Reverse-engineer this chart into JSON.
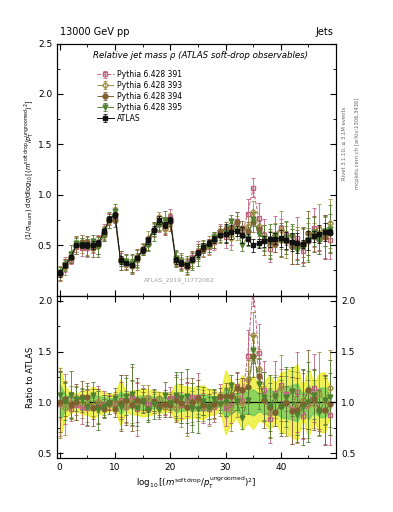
{
  "title_top": "13000 GeV pp",
  "title_right": "Jets",
  "plot_title": "Relative jet mass ρ (ATLAS soft-drop observables)",
  "watermark": "ATLAS_2019_I1772062",
  "right_label_top": "Rivet 3.1.10, ≥ 3.1M events",
  "right_label_bot": "mcplots.cern.ch [arXiv:1306.3436]",
  "ylabel_main": "(1/σ_resum) dσ/d log_{10}[(m^{soft drop}/p_T^{ungroomed})^2]",
  "ylabel_ratio": "Ratio to ATLAS",
  "xlabel": "log_{10}[(m^{soft drop}/p_T^{ungroomed})^2]",
  "xlim": [
    -0.5,
    50
  ],
  "ylim_main": [
    0.0,
    2.5
  ],
  "ylim_ratio": [
    0.45,
    2.05
  ],
  "yticks_main": [
    0.5,
    1.0,
    1.5,
    2.0,
    2.5
  ],
  "yticks_ratio": [
    0.5,
    1.0,
    1.5,
    2.0
  ],
  "xticks": [
    0,
    10,
    20,
    30,
    40
  ],
  "series": [
    {
      "label": "ATLAS",
      "color": "#111111",
      "marker": "s",
      "ms": 3.5,
      "ls": "-",
      "filled": true
    },
    {
      "label": "Pythia 6.428 391",
      "color": "#c06080",
      "marker": "s",
      "ms": 3.5,
      "ls": "--",
      "filled": false
    },
    {
      "label": "Pythia 6.428 393",
      "color": "#a09040",
      "marker": "D",
      "ms": 3.0,
      "ls": "-.",
      "filled": false
    },
    {
      "label": "Pythia 6.428 394",
      "color": "#806030",
      "marker": "o",
      "ms": 3.5,
      "ls": "-.",
      "filled": true
    },
    {
      "label": "Pythia 6.428 395",
      "color": "#508030",
      "marker": "v",
      "ms": 3.5,
      "ls": "-.",
      "filled": true
    }
  ],
  "band_yellow": {
    "color": "#e8e800",
    "alpha": 0.65
  },
  "band_green": {
    "color": "#40c060",
    "alpha": 0.55
  },
  "ref_line": 1.0,
  "bg": "#ffffff",
  "atlas_text_color": "#888888"
}
